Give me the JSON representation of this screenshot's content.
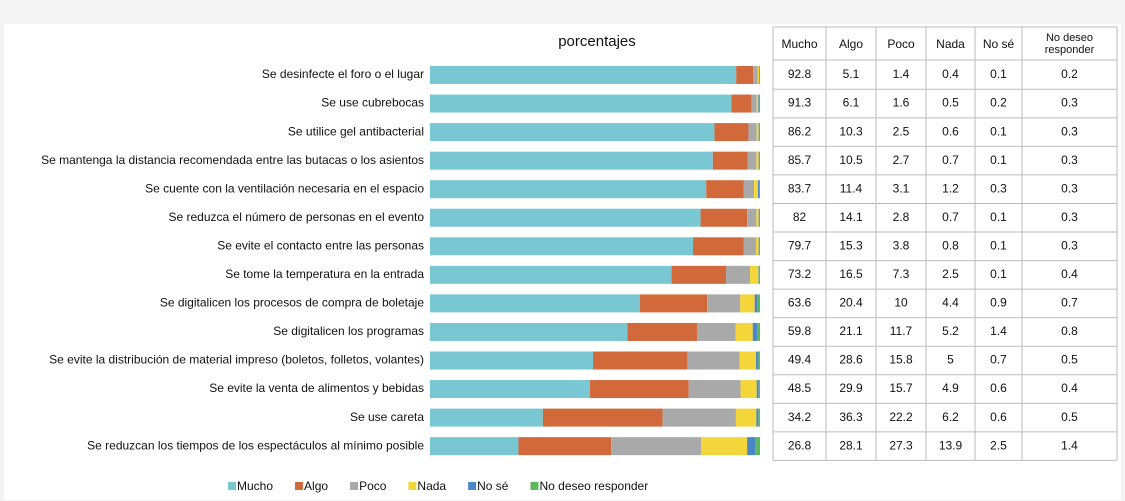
{
  "chart_data": {
    "type": "stacked-bar-horizontal",
    "title": "porcentajes",
    "categories": [
      "Se desinfecte el foro o el lugar",
      "Se use cubrebocas",
      "Se utilice gel antibacterial",
      "Se mantenga la distancia recomendada entre las butacas o los asientos",
      "Se cuente con la ventilación necesaria en el espacio",
      "Se reduzca el número de personas en el evento",
      "Se evite el contacto entre las personas",
      "Se tome la temperatura en la entrada",
      "Se digitalicen los procesos de compra de boletaje",
      "Se digitalicen los programas",
      "Se evite la distribución de material impreso (boletos, folletos, volantes)",
      "Se evite la venta de alimentos y bebidas",
      "Se use careta",
      "Se reduzcan los tiempos de los espectáculos al mínimo posible"
    ],
    "series": [
      {
        "name": "Mucho",
        "color": "#7ac7d4",
        "values": [
          92.8,
          91.3,
          86.2,
          85.7,
          83.7,
          82,
          79.7,
          73.2,
          63.6,
          59.8,
          49.4,
          48.5,
          34.2,
          26.8
        ]
      },
      {
        "name": "Algo",
        "color": "#d2693a",
        "values": [
          5.1,
          6.1,
          10.3,
          10.5,
          11.4,
          14.1,
          15.3,
          16.5,
          20.4,
          21.1,
          28.6,
          29.9,
          36.3,
          28.1
        ]
      },
      {
        "name": "Poco",
        "color": "#a9a9a9",
        "values": [
          1.4,
          1.6,
          2.5,
          2.7,
          3.1,
          2.8,
          3.8,
          7.3,
          10,
          11.7,
          15.8,
          15.7,
          22.2,
          27.3
        ]
      },
      {
        "name": "Nada",
        "color": "#f5d63a",
        "values": [
          0.4,
          0.5,
          0.6,
          0.7,
          1.2,
          0.7,
          0.8,
          2.5,
          4.4,
          5.2,
          5,
          4.9,
          6.2,
          13.9
        ]
      },
      {
        "name": "No sé",
        "color": "#4a86c8",
        "values": [
          0.1,
          0.2,
          0.1,
          0.1,
          0.3,
          0.1,
          0.1,
          0.1,
          0.9,
          1.4,
          0.7,
          0.6,
          0.6,
          2.5
        ]
      },
      {
        "name": "No deseo responder",
        "color": "#5cb85c",
        "values": [
          0.2,
          0.3,
          0.3,
          0.3,
          0.3,
          0.3,
          0.3,
          0.4,
          0.7,
          0.8,
          0.5,
          0.4,
          0.5,
          1.4
        ]
      }
    ],
    "xlim": [
      0,
      100
    ],
    "legend": "bottom"
  }
}
